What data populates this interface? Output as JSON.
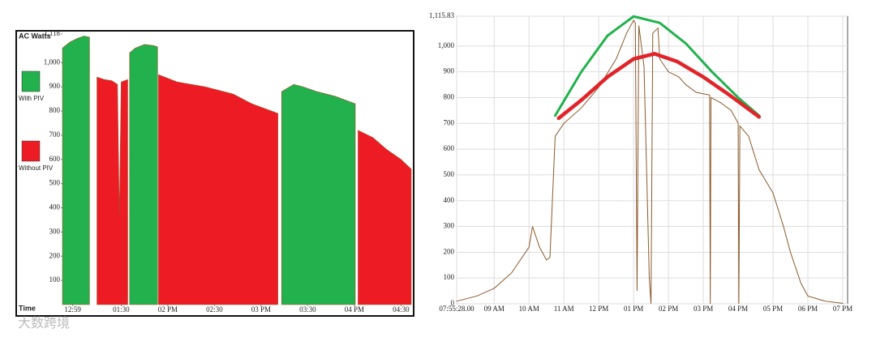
{
  "chart_data": [
    {
      "type": "area",
      "y_label": "AC Watts",
      "x_label": "Time",
      "legend": "left",
      "grid": false,
      "x": [
        12.87,
        12.95,
        13.03,
        13.1,
        13.16,
        13.24,
        13.32,
        13.4,
        13.46,
        13.48,
        13.5,
        13.57,
        13.59,
        13.65,
        13.75,
        13.85,
        13.89,
        13.9,
        14.1,
        14.4,
        14.7,
        14.9,
        15.18,
        15.22,
        15.35,
        15.45,
        15.6,
        15.8,
        16.01,
        16.04,
        16.2,
        16.35,
        16.5,
        16.61
      ],
      "series": [
        {
          "name": "With PIV",
          "color": "#22b14c",
          "values": [
            1060,
            1085,
            1100,
            1110,
            1105,
            null,
            null,
            null,
            null,
            null,
            null,
            null,
            1040,
            1060,
            1075,
            1070,
            1065,
            null,
            null,
            null,
            null,
            null,
            null,
            880,
            910,
            900,
            880,
            860,
            830,
            null,
            null,
            null,
            null,
            null
          ]
        },
        {
          "name": "Without PIV",
          "color": "#ed1c24",
          "values": [
            null,
            null,
            null,
            null,
            null,
            940,
            930,
            925,
            910,
            370,
            920,
            930,
            null,
            null,
            null,
            null,
            null,
            950,
            920,
            900,
            870,
            830,
            790,
            null,
            null,
            null,
            null,
            null,
            null,
            720,
            690,
            640,
            600,
            560
          ]
        }
      ],
      "xlim": [
        12.87,
        16.61
      ],
      "ylim": [
        0,
        1118
      ],
      "xticks": [
        {
          "value": 12.98,
          "label": "12:59"
        },
        {
          "value": 13.5,
          "label": "01:30"
        },
        {
          "value": 14,
          "label": "02 PM"
        },
        {
          "value": 14.5,
          "label": "02:30"
        },
        {
          "value": 15,
          "label": "03 PM"
        },
        {
          "value": 15.5,
          "label": "03:30"
        },
        {
          "value": 16,
          "label": "04 PM"
        },
        {
          "value": 16.5,
          "label": "04:30"
        }
      ],
      "yticks": [
        100,
        200,
        300,
        400,
        500,
        600,
        700,
        800,
        900,
        {
          "value": 1000,
          "label": "1,000"
        },
        {
          "value": 1118,
          "label": "1,118"
        }
      ]
    },
    {
      "type": "line",
      "grid": true,
      "series": [
        {
          "color": "#8b5a2b",
          "x": [
            7.924,
            8.5,
            9,
            9.5,
            10,
            10.1,
            10.3,
            10.5,
            10.6,
            10.75,
            11,
            11.5,
            12,
            12.5,
            12.8,
            13,
            13.05,
            13.1,
            13.15,
            13.3,
            13.45,
            13.5,
            13.55,
            13.7,
            13.75,
            14,
            14.3,
            14.5,
            14.8,
            15.18,
            15.2,
            15.22,
            15.5,
            15.8,
            16.0,
            16.02,
            16.05,
            16.3,
            16.6,
            17,
            17.3,
            17.5,
            17.8,
            18,
            18.5,
            19
          ],
          "values": [
            10,
            30,
            60,
            120,
            220,
            300,
            220,
            170,
            180,
            650,
            700,
            760,
            840,
            950,
            1050,
            1100,
            1090,
            50,
            1080,
            920,
            100,
            0,
            1050,
            1070,
            950,
            900,
            880,
            850,
            820,
            810,
            0,
            800,
            780,
            750,
            700,
            0,
            690,
            650,
            520,
            430,
            300,
            200,
            80,
            30,
            10,
            2
          ]
        },
        {
          "color": "#21b24b",
          "x": [
            10.75,
            11.5,
            12.25,
            13.0,
            13.75,
            14.5,
            15.25,
            16,
            16.6
          ],
          "values": [
            730,
            900,
            1040,
            1115,
            1090,
            1010,
            900,
            800,
            730
          ]
        },
        {
          "color": "#e0242a",
          "x": [
            10.85,
            11.5,
            12.25,
            13.0,
            13.6,
            14.25,
            15,
            15.75,
            16.6
          ],
          "values": [
            720,
            790,
            880,
            950,
            970,
            940,
            880,
            810,
            725
          ]
        }
      ],
      "xlim": [
        7.924,
        19.14
      ],
      "ylim": [
        0,
        1115.83
      ],
      "xticks": [
        {
          "value": 7.924,
          "label": "07:55:28.00"
        },
        {
          "value": 9,
          "label": "09 AM"
        },
        {
          "value": 10,
          "label": "10 AM"
        },
        {
          "value": 11,
          "label": "11 AM"
        },
        {
          "value": 12,
          "label": "12 PM"
        },
        {
          "value": 13,
          "label": "01 PM"
        },
        {
          "value": 14,
          "label": "02 PM"
        },
        {
          "value": 15,
          "label": "03 PM"
        },
        {
          "value": 16,
          "label": "04 PM"
        },
        {
          "value": 17,
          "label": "05 PM"
        },
        {
          "value": 18,
          "label": "06 PM"
        },
        {
          "value": 19,
          "label": "07 PM"
        }
      ],
      "yticks": [
        0,
        100,
        200,
        300,
        400,
        500,
        600,
        700,
        800,
        900,
        {
          "value": 1000,
          "label": "1,000"
        },
        {
          "value": 1115.83,
          "label": "1,115.83"
        }
      ]
    }
  ],
  "watermark": "大数跨境"
}
